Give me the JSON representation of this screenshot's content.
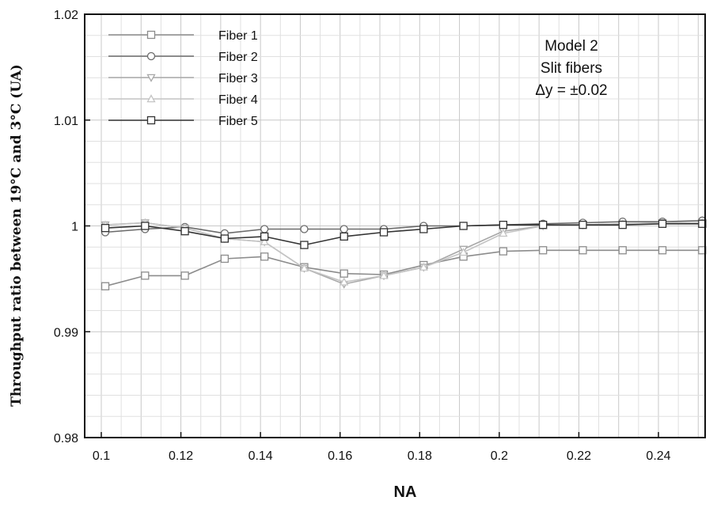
{
  "chart_data": {
    "type": "line",
    "title": "",
    "xlabel": "NA",
    "ylabel": "Throughput ratio between 19°C and 3°C (UA)",
    "xlim": [
      0.1,
      0.252
    ],
    "ylim": [
      0.98,
      1.02
    ],
    "x_ticks": [
      0.1,
      0.12,
      0.14,
      0.16,
      0.18,
      0.2,
      0.22,
      0.24
    ],
    "x_tick_labels": [
      "0.1",
      "0.12",
      "0.14",
      "0.16",
      "0.18",
      "0.2",
      "0.22",
      "0.24"
    ],
    "y_ticks": [
      0.98,
      0.99,
      1.0,
      1.01,
      1.02
    ],
    "y_tick_labels": [
      "0.98",
      "0.99",
      "1",
      "1.01",
      "1.02"
    ],
    "grid": true,
    "legend_position": "top-left",
    "annotation": [
      "Model 2",
      "Slit fibers",
      "Δy = ±0.02"
    ],
    "x": [
      0.101,
      0.111,
      0.121,
      0.131,
      0.141,
      0.151,
      0.161,
      0.171,
      0.181,
      0.191,
      0.201,
      0.211,
      0.221,
      0.231,
      0.241,
      0.251
    ],
    "series": [
      {
        "name": "Fiber 1",
        "marker": "square",
        "color": "#8c8c8c",
        "values": [
          0.9943,
          0.9953,
          0.9953,
          0.9969,
          0.9971,
          0.9961,
          0.9955,
          0.9954,
          0.9963,
          0.9971,
          0.9976,
          0.9977,
          0.9977,
          0.9977,
          0.9977,
          0.9977
        ]
      },
      {
        "name": "Fiber 2",
        "marker": "circle",
        "color": "#6a6a6a",
        "values": [
          0.9994,
          0.9997,
          0.9999,
          0.9993,
          0.9997,
          0.9997,
          0.9997,
          0.9997,
          1.0,
          1.0,
          1.0001,
          1.0002,
          1.0003,
          1.0004,
          1.0004,
          1.0005
        ]
      },
      {
        "name": "Fiber 3",
        "marker": "triangle-down",
        "color": "#a8a8a8",
        "values": [
          1.0001,
          1.0003,
          0.9998,
          0.9988,
          0.9985,
          0.996,
          0.9945,
          0.9953,
          0.9961,
          0.9978,
          0.9995,
          1.0,
          1.0001,
          1.0002,
          1.0003,
          1.0003
        ]
      },
      {
        "name": "Fiber 4",
        "marker": "triangle-up",
        "color": "#c4c4c4",
        "values": [
          1.0001,
          1.0003,
          0.9998,
          0.9988,
          0.9985,
          0.996,
          0.9947,
          0.9953,
          0.9961,
          0.9975,
          0.9993,
          1.0,
          1.0001,
          1.0002,
          1.0003,
          1.0003
        ]
      },
      {
        "name": "Fiber 5",
        "marker": "square",
        "color": "#333333",
        "values": [
          0.9998,
          1.0,
          0.9995,
          0.9988,
          0.999,
          0.9982,
          0.999,
          0.9994,
          0.9997,
          1.0,
          1.0001,
          1.0001,
          1.0001,
          1.0001,
          1.0002,
          1.0002
        ]
      }
    ]
  }
}
